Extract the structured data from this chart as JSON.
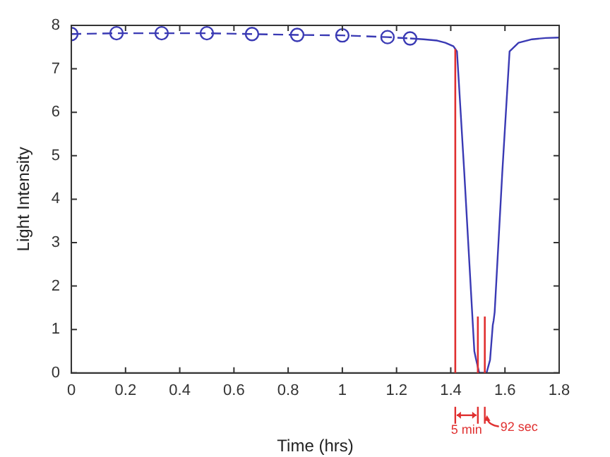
{
  "chart_data": {
    "type": "line",
    "xlabel": "Time (hrs)",
    "ylabel": "Light Intensity",
    "series": [
      {
        "color": "#3a3ab4",
        "marker": "circle",
        "line_style": "dashed",
        "x": [
          0,
          0.1667,
          0.3333,
          0.5,
          0.6667,
          0.8333,
          1,
          1.1667,
          1.25
        ],
        "values": [
          7.8,
          7.82,
          7.82,
          7.82,
          7.8,
          7.78,
          7.77,
          7.73,
          7.7
        ]
      },
      {
        "color": "#3a3ab4",
        "marker": "none",
        "line_style": "solid",
        "x": [
          1.25,
          1.3,
          1.35,
          1.38,
          1.41,
          1.423,
          1.45,
          1.487,
          1.492,
          1.505,
          1.532,
          1.545,
          1.555,
          1.558,
          1.562,
          1.59,
          1.617,
          1.65,
          1.7,
          1.75,
          1.8
        ],
        "values": [
          7.7,
          7.68,
          7.65,
          7.6,
          7.52,
          7.4,
          4.6,
          0.5,
          0.35,
          0,
          0,
          0.3,
          1.1,
          1.2,
          1.4,
          4.6,
          7.4,
          7.6,
          7.68,
          7.71,
          7.72
        ]
      }
    ],
    "xlim": [
      0,
      1.8
    ],
    "xticks": [
      0,
      0.2,
      0.4,
      0.6,
      0.8,
      1,
      1.2,
      1.4,
      1.6,
      1.8
    ],
    "ylim": [
      0,
      8
    ],
    "yticks": [
      0,
      1,
      2,
      3,
      4,
      5,
      6,
      7,
      8
    ],
    "grid": false,
    "legend": false,
    "ref_lines": [
      {
        "axis": "x",
        "value": 1.4167,
        "color": "#e03030"
      },
      {
        "axis": "x",
        "value": 1.5,
        "color": "#e03030"
      },
      {
        "axis": "x",
        "value": 1.5256,
        "color": "#e03030"
      }
    ],
    "annotations": [
      "5 min",
      "92 sec"
    ]
  }
}
